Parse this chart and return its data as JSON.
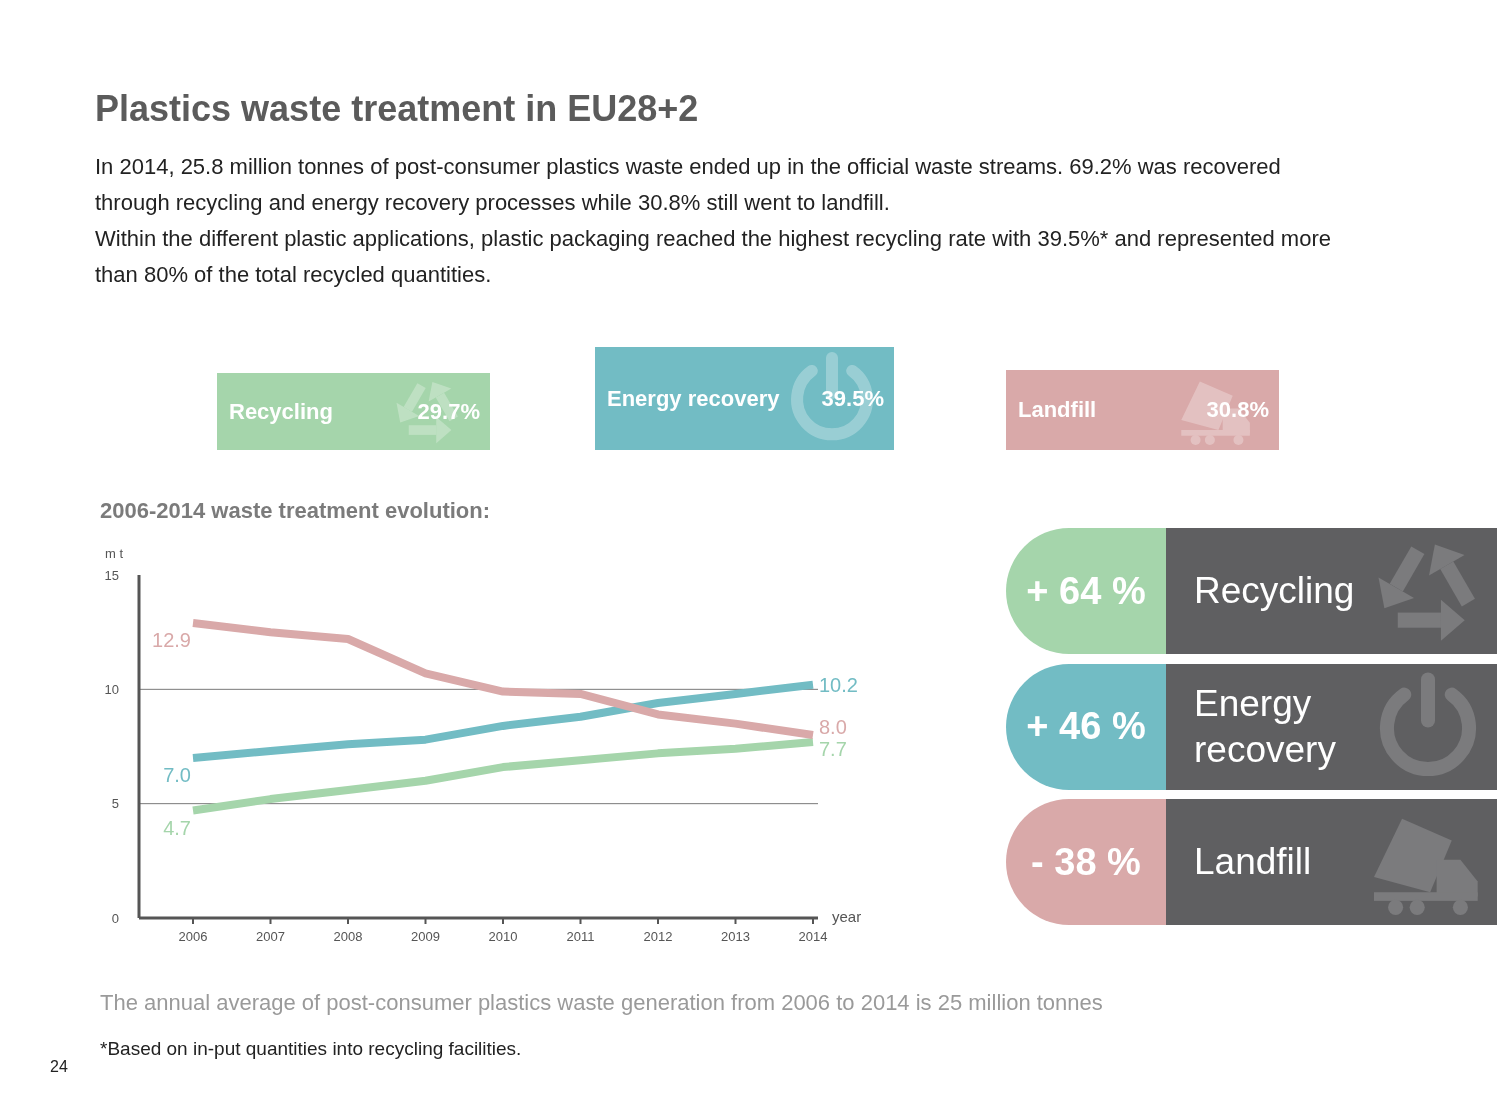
{
  "chart_data": [
    {
      "type": "other",
      "title": "Plastics waste treatment in EU28+2",
      "subtitle": "In 2014, 25.8 million tonnes of post-consumer plastics waste ended up in the official waste streams. 69.2% was recovered through recycling and energy recovery processes while 30.8% still went to landfill.\nWithin the different plastic applications, plastic packaging reached the highest recycling rate with 39.5%* and represented more than 80% of the total recycled quantities.",
      "categories": [
        "Recycling",
        "Energy recovery",
        "Landfill"
      ],
      "value_labels": [
        "29.7%",
        "39.5%",
        "30.8%"
      ],
      "colors": [
        "#a5d5ab",
        "#72bcc4",
        "#d9a9a9"
      ]
    },
    {
      "type": "line",
      "title": "2006-2014 waste treatment evolution:",
      "xlabel": "year",
      "ylabel": "m t",
      "categories": [
        "2006",
        "2007",
        "2008",
        "2009",
        "2010",
        "2011",
        "2012",
        "2013",
        "2014"
      ],
      "ylim": [
        0,
        15
      ],
      "yticks": [
        0,
        5,
        10,
        15
      ],
      "grid": "y",
      "marker": "none",
      "line_style": "solid",
      "series": [
        {
          "color": "#a5d5ab",
          "values": [
            4.7,
            5.2,
            5.6,
            6.0,
            6.6,
            6.9,
            7.2,
            7.4,
            7.7
          ],
          "value_labels": [
            "4.7",
            null,
            null,
            null,
            null,
            null,
            null,
            null,
            "7.7"
          ]
        },
        {
          "color": "#72bcc4",
          "values": [
            7.0,
            7.3,
            7.6,
            7.8,
            8.4,
            8.8,
            9.4,
            9.8,
            10.2
          ],
          "value_labels": [
            "7.0",
            null,
            null,
            null,
            null,
            null,
            null,
            null,
            "10.2"
          ]
        },
        {
          "color": "#d9a9a9",
          "values": [
            12.9,
            12.5,
            12.2,
            10.7,
            9.9,
            9.8,
            8.9,
            8.5,
            8.0
          ],
          "value_labels": [
            "12.9",
            null,
            null,
            null,
            null,
            null,
            null,
            null,
            "8.0"
          ]
        }
      ],
      "annotations": [
        "The annual average of post-consumer plastics waste generation from 2006 to 2014 is 25 million tonnes",
        "*Based on in-put quantities into recycling facilities.",
        "24"
      ]
    },
    {
      "type": "other",
      "categories": [
        "Recycling",
        "Energy recovery",
        "Landfill"
      ],
      "value_labels": [
        "+ 64 %",
        "+ 46 %",
        "- 38 %"
      ]
    }
  ]
}
